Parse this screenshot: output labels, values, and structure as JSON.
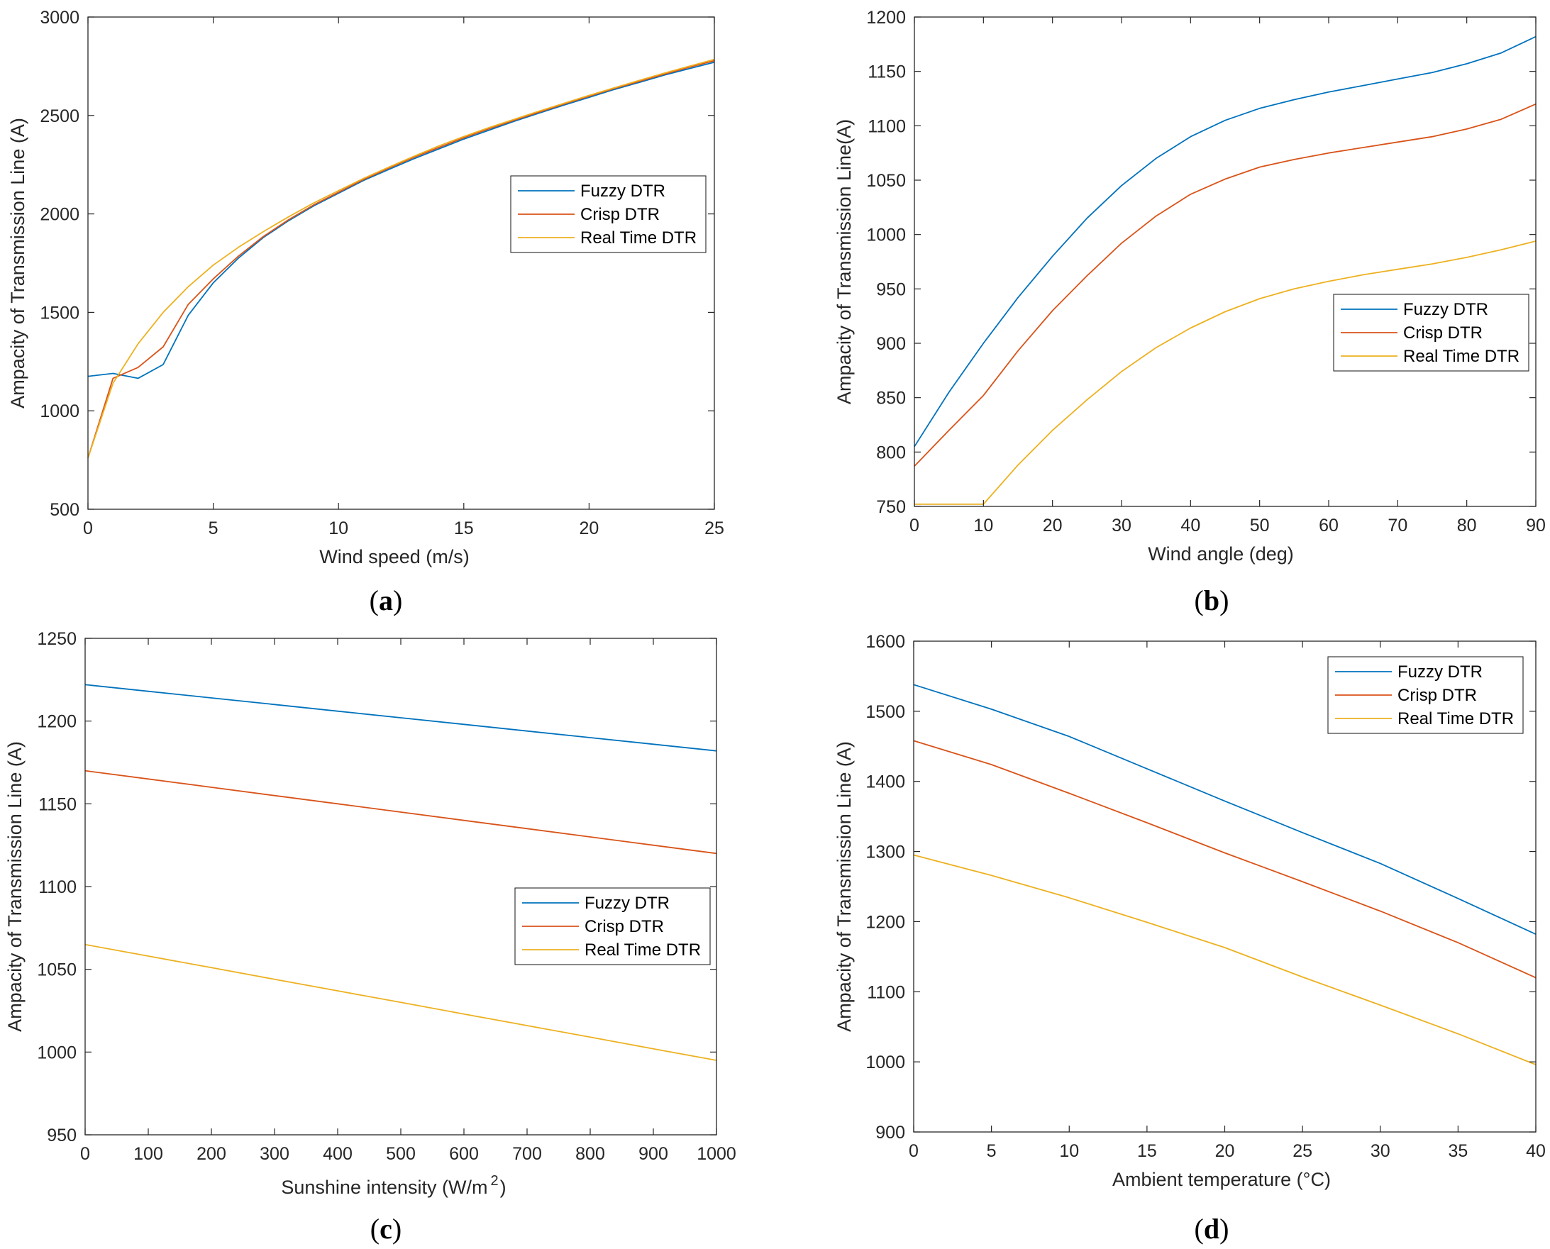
{
  "colors": {
    "fuzzy": "#0072BD",
    "crisp": "#D95319",
    "realtime": "#EDB120",
    "axis": "#262626"
  },
  "chart_data": [
    {
      "id": "a",
      "type": "line",
      "caption": "a",
      "xlabel": "Wind speed (m/s)",
      "ylabel": "Ampacity of Transmission Line (A)",
      "xlim": [
        0,
        25
      ],
      "ylim": [
        500,
        3000
      ],
      "xticks": [
        0,
        5,
        10,
        15,
        20,
        25
      ],
      "yticks": [
        500,
        1000,
        1500,
        2000,
        2500,
        3000
      ],
      "legend_position": "right-middle",
      "x": [
        0,
        1,
        2,
        3,
        4,
        5,
        6,
        7,
        8,
        9,
        10,
        11,
        12,
        13,
        14,
        15,
        16,
        17,
        18,
        19,
        20,
        21,
        22,
        23,
        24,
        25
      ],
      "series": [
        {
          "name": "Fuzzy DTR",
          "color": "fuzzy",
          "values": [
            1175,
            1190,
            1165,
            1235,
            1485,
            1650,
            1775,
            1880,
            1965,
            2040,
            2105,
            2170,
            2225,
            2280,
            2330,
            2380,
            2425,
            2470,
            2512,
            2553,
            2592,
            2632,
            2668,
            2705,
            2738,
            2770
          ]
        },
        {
          "name": "Crisp DTR",
          "color": "crisp",
          "values": [
            760,
            1165,
            1220,
            1325,
            1540,
            1670,
            1785,
            1885,
            1970,
            2045,
            2110,
            2175,
            2232,
            2287,
            2337,
            2387,
            2432,
            2475,
            2517,
            2558,
            2598,
            2637,
            2673,
            2710,
            2745,
            2778
          ]
        },
        {
          "name": "Real Time DTR",
          "color": "realtime",
          "values": [
            760,
            1140,
            1340,
            1500,
            1630,
            1740,
            1830,
            1910,
            1985,
            2055,
            2118,
            2180,
            2237,
            2292,
            2345,
            2393,
            2438,
            2480,
            2522,
            2562,
            2602,
            2640,
            2678,
            2715,
            2750,
            2785
          ]
        }
      ]
    },
    {
      "id": "b",
      "type": "line",
      "caption": "b",
      "xlabel": "Wind angle (deg)",
      "ylabel": "Ampacity of Transmission Line(A)",
      "xlim": [
        0,
        90
      ],
      "ylim": [
        750,
        1200
      ],
      "xticks": [
        0,
        10,
        20,
        30,
        40,
        50,
        60,
        70,
        80,
        90
      ],
      "yticks": [
        750,
        800,
        850,
        900,
        950,
        1000,
        1050,
        1100,
        1150,
        1200
      ],
      "legend_position": "right-middle",
      "x": [
        0,
        5,
        10,
        15,
        20,
        25,
        30,
        35,
        40,
        45,
        50,
        55,
        60,
        65,
        70,
        75,
        80,
        85,
        90
      ],
      "series": [
        {
          "name": "Fuzzy DTR",
          "color": "fuzzy",
          "values": [
            805,
            855,
            900,
            942,
            980,
            1015,
            1045,
            1070,
            1090,
            1105,
            1116,
            1124,
            1131,
            1137,
            1143,
            1149,
            1157,
            1167,
            1182
          ]
        },
        {
          "name": "Crisp DTR",
          "color": "crisp",
          "values": [
            787,
            820,
            852,
            893,
            930,
            962,
            992,
            1017,
            1037,
            1051,
            1062,
            1069,
            1075,
            1080,
            1085,
            1090,
            1097,
            1106,
            1120
          ]
        },
        {
          "name": "Real Time DTR",
          "color": "realtime",
          "values": [
            752,
            752,
            752,
            788,
            820,
            848,
            874,
            896,
            914,
            929,
            941,
            950,
            957,
            963,
            968,
            973,
            979,
            986,
            994
          ]
        }
      ]
    },
    {
      "id": "c",
      "type": "line",
      "caption": "c",
      "xlabel": "Sunshine intensity (W/m",
      "xlabel_sup": "2",
      "xlabel_tail": ")",
      "ylabel": "Ampacity of Transmission Line (A)",
      "xlim": [
        0,
        1000
      ],
      "ylim": [
        950,
        1250
      ],
      "xticks": [
        0,
        100,
        200,
        300,
        400,
        500,
        600,
        700,
        800,
        900,
        1000
      ],
      "yticks": [
        950,
        1000,
        1050,
        1100,
        1150,
        1200,
        1250
      ],
      "legend_position": "right-lower",
      "x": [
        0,
        100,
        200,
        300,
        400,
        500,
        600,
        700,
        800,
        900,
        1000
      ],
      "series": [
        {
          "name": "Fuzzy DTR",
          "color": "fuzzy",
          "values": [
            1222,
            1218,
            1214,
            1210,
            1206,
            1202,
            1198,
            1194,
            1190,
            1186,
            1182
          ]
        },
        {
          "name": "Crisp DTR",
          "color": "crisp",
          "values": [
            1170,
            1165,
            1160,
            1155,
            1150,
            1145,
            1140,
            1135,
            1130,
            1125,
            1120
          ]
        },
        {
          "name": "Real Time DTR",
          "color": "realtime",
          "values": [
            1065,
            1058,
            1051,
            1044,
            1037,
            1030,
            1023,
            1016,
            1009,
            1002,
            995
          ]
        }
      ]
    },
    {
      "id": "d",
      "type": "line",
      "caption": "d",
      "xlabel": "Ambient temperature (°C)",
      "ylabel": "Ampacity of Transmission Line (A)",
      "xlim": [
        0,
        40
      ],
      "ylim": [
        900,
        1600
      ],
      "xticks": [
        0,
        5,
        10,
        15,
        20,
        25,
        30,
        35,
        40
      ],
      "yticks": [
        900,
        1000,
        1100,
        1200,
        1300,
        1400,
        1500,
        1600
      ],
      "legend_position": "top-right",
      "x": [
        0,
        5,
        10,
        15,
        20,
        25,
        30,
        35,
        40
      ],
      "series": [
        {
          "name": "Fuzzy DTR",
          "color": "fuzzy",
          "values": [
            1538,
            1503,
            1464,
            1418,
            1372,
            1327,
            1283,
            1233,
            1182
          ]
        },
        {
          "name": "Crisp DTR",
          "color": "crisp",
          "values": [
            1458,
            1424,
            1383,
            1341,
            1298,
            1257,
            1215,
            1170,
            1120
          ]
        },
        {
          "name": "Real Time DTR",
          "color": "realtime",
          "values": [
            1295,
            1266,
            1234,
            1199,
            1163,
            1121,
            1081,
            1040,
            996
          ]
        }
      ]
    }
  ]
}
